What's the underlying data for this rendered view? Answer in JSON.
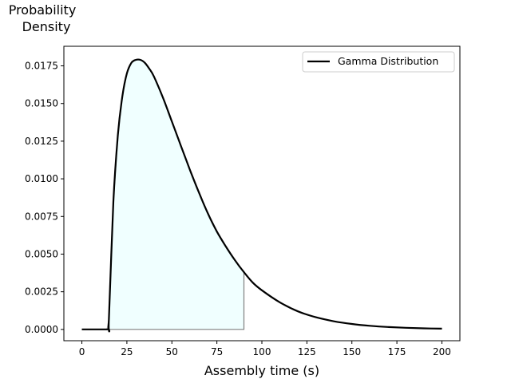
{
  "chart_data": {
    "type": "line",
    "title": "",
    "xlabel": "Assembly time (s)",
    "ylabel_lines": [
      "Probability",
      "Density"
    ],
    "xlim": [
      -10,
      210
    ],
    "ylim": [
      -0.00075,
      0.0188
    ],
    "x_ticks": [
      0,
      25,
      50,
      75,
      100,
      125,
      150,
      175,
      200
    ],
    "x_tick_labels": [
      "0",
      "25",
      "50",
      "75",
      "100",
      "125",
      "150",
      "175",
      "200"
    ],
    "y_ticks": [
      0.0,
      0.0025,
      0.005,
      0.0075,
      0.01,
      0.0125,
      0.015,
      0.0175
    ],
    "y_tick_labels": [
      "0.0000",
      "0.0025",
      "0.0050",
      "0.0075",
      "0.0100",
      "0.0125",
      "0.0150",
      "0.0175"
    ],
    "grid": false,
    "legend_position": "top-right",
    "series": [
      {
        "name": "Gamma Distribution",
        "color": "#000000",
        "x": [
          0,
          14,
          15,
          17.5,
          20,
          22.5,
          25,
          27.5,
          30,
          32.5,
          35,
          37.5,
          40,
          45,
          50,
          55,
          60,
          65,
          70,
          75,
          80,
          85,
          90,
          95,
          100,
          110,
          120,
          130,
          140,
          150,
          160,
          170,
          180,
          190,
          200
        ],
        "y": [
          0,
          0,
          0.0007,
          0.0085,
          0.0129,
          0.0155,
          0.017,
          0.0177,
          0.0179,
          0.0179,
          0.0177,
          0.0173,
          0.0168,
          0.0154,
          0.0138,
          0.0122,
          0.0106,
          0.0091,
          0.0077,
          0.0065,
          0.0055,
          0.0046,
          0.0038,
          0.0031,
          0.0026,
          0.0018,
          0.0012,
          0.00081,
          0.00054,
          0.00036,
          0.00024,
          0.00016,
          0.00011,
          7e-05,
          5e-05
        ]
      }
    ],
    "shaded_region": {
      "x_start": 14,
      "x_end": 90,
      "fill_color": "#f0ffff",
      "edge_color": "#808080"
    }
  }
}
